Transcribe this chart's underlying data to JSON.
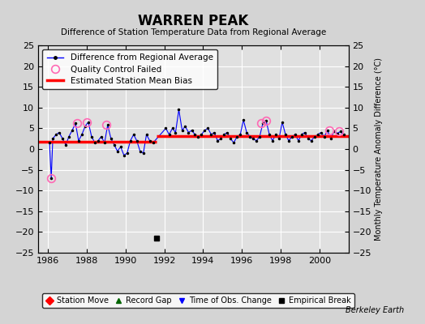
{
  "title": "WARREN PEAK",
  "subtitle": "Difference of Station Temperature Data from Regional Average",
  "ylabel_right": "Monthly Temperature Anomaly Difference (°C)",
  "xlim": [
    1985.5,
    2001.5
  ],
  "ylim": [
    -25,
    25
  ],
  "yticks": [
    -25,
    -20,
    -15,
    -10,
    -5,
    0,
    5,
    10,
    15,
    20,
    25
  ],
  "xticks": [
    1986,
    1988,
    1990,
    1992,
    1994,
    1996,
    1998,
    2000
  ],
  "bg_color": "#d4d4d4",
  "plot_bg_color": "#e0e0e0",
  "grid_color": "white",
  "credit": "Berkeley Earth",
  "empirical_break_x": 1991.58,
  "empirical_break_y": -21.5,
  "bias_segments": [
    {
      "x_start": 1985.5,
      "x_end": 1991.58,
      "y": 1.8
    },
    {
      "x_start": 1991.58,
      "x_end": 2001.5,
      "y": 3.2
    }
  ],
  "qc_failed_points": [
    [
      1986.17,
      -7.0
    ],
    [
      1987.5,
      6.2
    ],
    [
      1988.0,
      6.5
    ],
    [
      1989.0,
      5.8
    ],
    [
      1997.0,
      6.2
    ],
    [
      1997.25,
      6.8
    ],
    [
      2000.5,
      4.5
    ],
    [
      2001.0,
      4.2
    ]
  ],
  "main_data": [
    [
      1986.08,
      1.5
    ],
    [
      1986.17,
      -7.0
    ],
    [
      1986.25,
      2.5
    ],
    [
      1986.42,
      3.5
    ],
    [
      1986.58,
      4.0
    ],
    [
      1986.75,
      2.5
    ],
    [
      1986.92,
      1.0
    ],
    [
      1987.08,
      3.0
    ],
    [
      1987.25,
      4.5
    ],
    [
      1987.42,
      6.2
    ],
    [
      1987.58,
      2.0
    ],
    [
      1987.75,
      3.5
    ],
    [
      1987.92,
      5.5
    ],
    [
      1988.08,
      6.5
    ],
    [
      1988.25,
      3.0
    ],
    [
      1988.42,
      1.5
    ],
    [
      1988.58,
      2.0
    ],
    [
      1988.75,
      3.0
    ],
    [
      1988.92,
      1.5
    ],
    [
      1989.08,
      5.8
    ],
    [
      1989.25,
      2.5
    ],
    [
      1989.42,
      1.0
    ],
    [
      1989.58,
      -0.5
    ],
    [
      1989.75,
      0.5
    ],
    [
      1989.92,
      -1.5
    ],
    [
      1990.08,
      -1.0
    ],
    [
      1990.25,
      2.0
    ],
    [
      1990.42,
      3.5
    ],
    [
      1990.58,
      2.0
    ],
    [
      1990.75,
      -0.5
    ],
    [
      1990.92,
      -1.0
    ],
    [
      1991.08,
      3.5
    ],
    [
      1991.25,
      2.0
    ],
    [
      1991.42,
      1.5
    ],
    [
      1992.08,
      5.0
    ],
    [
      1992.25,
      3.5
    ],
    [
      1992.42,
      5.0
    ],
    [
      1992.58,
      4.0
    ],
    [
      1992.75,
      9.5
    ],
    [
      1992.92,
      4.5
    ],
    [
      1993.08,
      5.5
    ],
    [
      1993.25,
      4.0
    ],
    [
      1993.42,
      4.5
    ],
    [
      1993.58,
      3.5
    ],
    [
      1993.75,
      3.0
    ],
    [
      1993.92,
      3.5
    ],
    [
      1994.08,
      4.5
    ],
    [
      1994.25,
      5.0
    ],
    [
      1994.42,
      3.5
    ],
    [
      1994.58,
      4.0
    ],
    [
      1994.75,
      2.0
    ],
    [
      1994.92,
      2.5
    ],
    [
      1995.08,
      3.5
    ],
    [
      1995.25,
      4.0
    ],
    [
      1995.42,
      2.5
    ],
    [
      1995.58,
      1.5
    ],
    [
      1995.75,
      3.0
    ],
    [
      1995.92,
      3.5
    ],
    [
      1996.08,
      7.0
    ],
    [
      1996.25,
      4.0
    ],
    [
      1996.42,
      3.0
    ],
    [
      1996.58,
      2.5
    ],
    [
      1996.75,
      2.0
    ],
    [
      1996.92,
      3.0
    ],
    [
      1997.08,
      6.2
    ],
    [
      1997.25,
      6.8
    ],
    [
      1997.42,
      3.5
    ],
    [
      1997.58,
      2.0
    ],
    [
      1997.75,
      3.5
    ],
    [
      1997.92,
      2.5
    ],
    [
      1998.08,
      6.5
    ],
    [
      1998.25,
      3.5
    ],
    [
      1998.42,
      2.0
    ],
    [
      1998.58,
      3.0
    ],
    [
      1998.75,
      3.5
    ],
    [
      1998.92,
      2.0
    ],
    [
      1999.08,
      3.5
    ],
    [
      1999.25,
      4.0
    ],
    [
      1999.42,
      2.5
    ],
    [
      1999.58,
      2.0
    ],
    [
      1999.75,
      3.0
    ],
    [
      1999.92,
      3.5
    ],
    [
      2000.08,
      4.0
    ],
    [
      2000.25,
      3.0
    ],
    [
      2000.42,
      4.5
    ],
    [
      2000.58,
      2.5
    ],
    [
      2000.75,
      4.2
    ],
    [
      2000.92,
      3.8
    ],
    [
      2001.08,
      4.2
    ],
    [
      2001.25,
      3.5
    ]
  ]
}
